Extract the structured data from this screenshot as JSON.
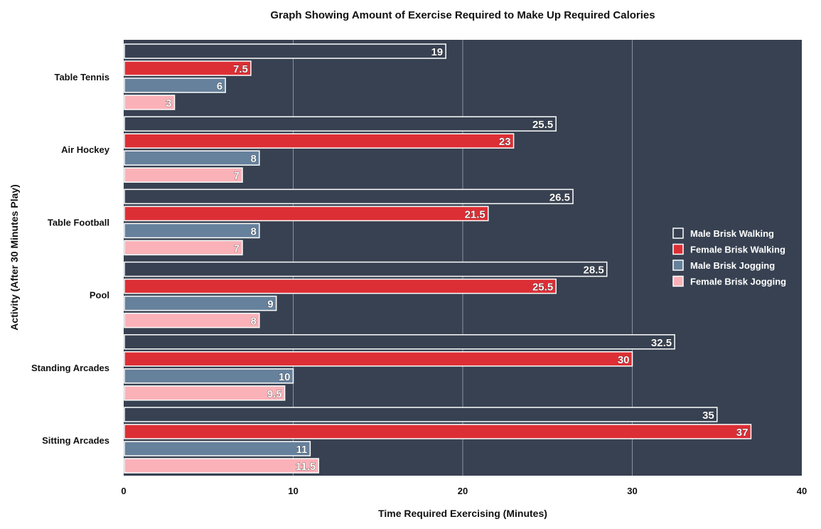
{
  "chart_data": {
    "type": "bar",
    "orientation": "horizontal",
    "title": "Graph Showing Amount of Exercise Required to Make Up Required Calories",
    "xlabel": "Time Required Exercising (Minutes)",
    "ylabel": "Activity (After 30 Minutes Play)",
    "xlim": [
      0,
      40
    ],
    "xticks": [
      "0",
      "10",
      "20",
      "30",
      "40"
    ],
    "grid": true,
    "legend_position": "right",
    "plot_background": "#374151",
    "categories": [
      "Table Tennis",
      "Air Hockey",
      "Table Football",
      "Pool",
      "Standing Arcades",
      "Sitting Arcades"
    ],
    "series": [
      {
        "name": "Male Brisk Walking",
        "color": "#374151",
        "values": [
          19,
          25.5,
          26.5,
          28.5,
          32.5,
          35
        ],
        "labels": [
          "19",
          "25.5",
          "26.5",
          "28.5",
          "32.5",
          "35"
        ]
      },
      {
        "name": "Female Brisk Walking",
        "color": "#dc2f35",
        "values": [
          7.5,
          23,
          21.5,
          25.5,
          30,
          37
        ],
        "labels": [
          "7.5",
          "23",
          "21.5",
          "25.5",
          "30",
          "37"
        ]
      },
      {
        "name": "Male Brisk Jogging",
        "color": "#66819c",
        "values": [
          6,
          8,
          8,
          9,
          10,
          11
        ],
        "labels": [
          "6",
          "8",
          "8",
          "9",
          "10",
          "11"
        ]
      },
      {
        "name": "Female Brisk Jogging",
        "color": "#fbb1b8",
        "values": [
          3,
          7,
          7,
          8,
          9.5,
          11.5
        ],
        "labels": [
          "3",
          "7",
          "7",
          "8",
          "9.5",
          "11.5"
        ]
      }
    ]
  }
}
